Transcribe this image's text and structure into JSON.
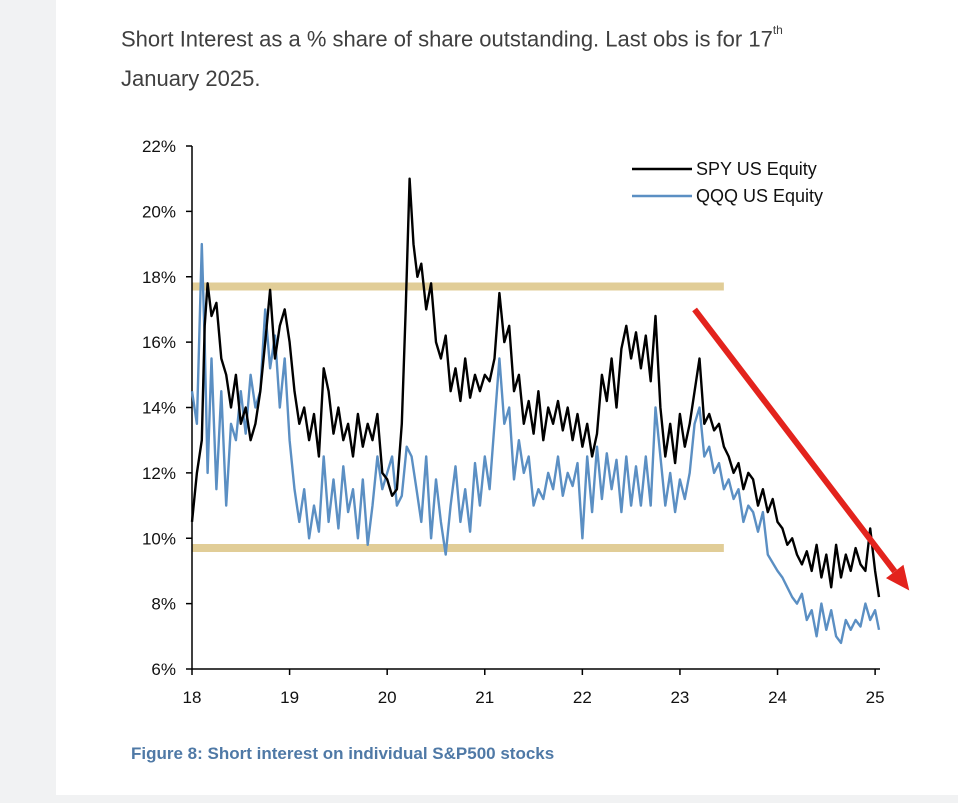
{
  "header": {
    "title_main": "Short Interest as a % share of share outstanding. Last obs is for 17",
    "title_sup": "th",
    "title_line2": "January 2025."
  },
  "caption": "Figure 8: Short interest on individual S&P500 stocks",
  "chart_data": {
    "type": "line",
    "title": "",
    "xlabel": "",
    "ylabel": "",
    "x_ticks": [
      "18",
      "19",
      "20",
      "21",
      "22",
      "23",
      "24",
      "25"
    ],
    "y_ticks": [
      "6%",
      "8%",
      "10%",
      "12%",
      "14%",
      "16%",
      "18%",
      "20%",
      "22%"
    ],
    "xlim": [
      2018.0,
      2025.05
    ],
    "ylim": [
      6,
      22
    ],
    "legend_position": "top-right",
    "series": [
      {
        "name": "SPY US Equity",
        "color": "#000000",
        "points": [
          [
            2018.0,
            10.5
          ],
          [
            2018.05,
            12.0
          ],
          [
            2018.1,
            13.0
          ],
          [
            2018.13,
            16.5
          ],
          [
            2018.16,
            17.8
          ],
          [
            2018.2,
            16.8
          ],
          [
            2018.25,
            17.2
          ],
          [
            2018.3,
            15.5
          ],
          [
            2018.35,
            15.0
          ],
          [
            2018.4,
            14.0
          ],
          [
            2018.45,
            15.0
          ],
          [
            2018.5,
            13.5
          ],
          [
            2018.55,
            14.0
          ],
          [
            2018.6,
            13.0
          ],
          [
            2018.65,
            13.5
          ],
          [
            2018.7,
            14.5
          ],
          [
            2018.75,
            16.0
          ],
          [
            2018.8,
            17.6
          ],
          [
            2018.85,
            15.5
          ],
          [
            2018.9,
            16.5
          ],
          [
            2018.95,
            17.0
          ],
          [
            2019.0,
            16.0
          ],
          [
            2019.05,
            14.5
          ],
          [
            2019.1,
            13.5
          ],
          [
            2019.15,
            14.0
          ],
          [
            2019.2,
            13.0
          ],
          [
            2019.25,
            13.8
          ],
          [
            2019.3,
            12.5
          ],
          [
            2019.35,
            15.2
          ],
          [
            2019.4,
            14.5
          ],
          [
            2019.45,
            13.2
          ],
          [
            2019.5,
            14.0
          ],
          [
            2019.55,
            13.0
          ],
          [
            2019.6,
            13.5
          ],
          [
            2019.65,
            12.5
          ],
          [
            2019.7,
            13.8
          ],
          [
            2019.75,
            12.8
          ],
          [
            2019.8,
            13.5
          ],
          [
            2019.85,
            13.0
          ],
          [
            2019.9,
            13.8
          ],
          [
            2019.95,
            12.0
          ],
          [
            2020.0,
            11.8
          ],
          [
            2020.05,
            11.3
          ],
          [
            2020.1,
            11.5
          ],
          [
            2020.15,
            13.5
          ],
          [
            2020.19,
            17.0
          ],
          [
            2020.23,
            21.0
          ],
          [
            2020.27,
            19.0
          ],
          [
            2020.31,
            18.0
          ],
          [
            2020.35,
            18.4
          ],
          [
            2020.4,
            17.0
          ],
          [
            2020.45,
            17.8
          ],
          [
            2020.5,
            16.0
          ],
          [
            2020.55,
            15.5
          ],
          [
            2020.6,
            16.2
          ],
          [
            2020.65,
            14.5
          ],
          [
            2020.7,
            15.2
          ],
          [
            2020.75,
            14.2
          ],
          [
            2020.8,
            15.5
          ],
          [
            2020.85,
            14.3
          ],
          [
            2020.9,
            15.0
          ],
          [
            2020.95,
            14.5
          ],
          [
            2021.0,
            15.0
          ],
          [
            2021.05,
            14.8
          ],
          [
            2021.1,
            15.5
          ],
          [
            2021.15,
            17.5
          ],
          [
            2021.2,
            16.0
          ],
          [
            2021.25,
            16.5
          ],
          [
            2021.3,
            14.5
          ],
          [
            2021.35,
            15.0
          ],
          [
            2021.4,
            13.5
          ],
          [
            2021.45,
            14.2
          ],
          [
            2021.5,
            13.2
          ],
          [
            2021.55,
            14.5
          ],
          [
            2021.6,
            13.0
          ],
          [
            2021.65,
            14.0
          ],
          [
            2021.7,
            13.5
          ],
          [
            2021.75,
            14.2
          ],
          [
            2021.8,
            13.3
          ],
          [
            2021.85,
            14.0
          ],
          [
            2021.9,
            13.0
          ],
          [
            2021.95,
            13.8
          ],
          [
            2022.0,
            12.8
          ],
          [
            2022.05,
            13.5
          ],
          [
            2022.1,
            12.5
          ],
          [
            2022.15,
            13.2
          ],
          [
            2022.2,
            15.0
          ],
          [
            2022.25,
            14.2
          ],
          [
            2022.3,
            15.5
          ],
          [
            2022.35,
            14.0
          ],
          [
            2022.4,
            15.8
          ],
          [
            2022.45,
            16.5
          ],
          [
            2022.5,
            15.5
          ],
          [
            2022.55,
            16.3
          ],
          [
            2022.6,
            15.2
          ],
          [
            2022.65,
            16.2
          ],
          [
            2022.7,
            14.8
          ],
          [
            2022.75,
            16.8
          ],
          [
            2022.8,
            14.0
          ],
          [
            2022.85,
            12.5
          ],
          [
            2022.9,
            13.5
          ],
          [
            2022.95,
            12.3
          ],
          [
            2023.0,
            13.8
          ],
          [
            2023.05,
            12.8
          ],
          [
            2023.1,
            13.5
          ],
          [
            2023.15,
            14.5
          ],
          [
            2023.2,
            15.5
          ],
          [
            2023.25,
            13.5
          ],
          [
            2023.3,
            13.8
          ],
          [
            2023.35,
            13.3
          ],
          [
            2023.4,
            13.5
          ],
          [
            2023.45,
            12.8
          ],
          [
            2023.5,
            12.5
          ],
          [
            2023.55,
            12.0
          ],
          [
            2023.6,
            12.3
          ],
          [
            2023.65,
            11.5
          ],
          [
            2023.7,
            12.0
          ],
          [
            2023.75,
            11.8
          ],
          [
            2023.8,
            11.0
          ],
          [
            2023.85,
            11.5
          ],
          [
            2023.9,
            10.8
          ],
          [
            2023.95,
            11.2
          ],
          [
            2024.0,
            10.5
          ],
          [
            2024.05,
            10.3
          ],
          [
            2024.1,
            9.8
          ],
          [
            2024.15,
            10.0
          ],
          [
            2024.2,
            9.5
          ],
          [
            2024.25,
            9.2
          ],
          [
            2024.3,
            9.6
          ],
          [
            2024.35,
            9.0
          ],
          [
            2024.4,
            9.8
          ],
          [
            2024.45,
            8.8
          ],
          [
            2024.5,
            9.5
          ],
          [
            2024.55,
            8.5
          ],
          [
            2024.6,
            9.8
          ],
          [
            2024.65,
            8.8
          ],
          [
            2024.7,
            9.5
          ],
          [
            2024.75,
            9.0
          ],
          [
            2024.8,
            9.7
          ],
          [
            2024.85,
            9.2
          ],
          [
            2024.9,
            9.0
          ],
          [
            2024.95,
            10.3
          ],
          [
            2025.0,
            9.0
          ],
          [
            2025.04,
            8.2
          ]
        ]
      },
      {
        "name": "QQQ US Equity",
        "color": "#5b8fc3",
        "points": [
          [
            2018.0,
            14.5
          ],
          [
            2018.05,
            13.5
          ],
          [
            2018.1,
            19.0
          ],
          [
            2018.13,
            16.0
          ],
          [
            2018.16,
            12.0
          ],
          [
            2018.2,
            15.5
          ],
          [
            2018.25,
            11.5
          ],
          [
            2018.3,
            14.5
          ],
          [
            2018.35,
            11.0
          ],
          [
            2018.4,
            13.5
          ],
          [
            2018.45,
            13.0
          ],
          [
            2018.5,
            14.5
          ],
          [
            2018.55,
            13.2
          ],
          [
            2018.6,
            15.0
          ],
          [
            2018.65,
            14.0
          ],
          [
            2018.7,
            14.5
          ],
          [
            2018.75,
            17.0
          ],
          [
            2018.8,
            15.2
          ],
          [
            2018.85,
            16.2
          ],
          [
            2018.9,
            14.0
          ],
          [
            2018.95,
            15.5
          ],
          [
            2019.0,
            13.0
          ],
          [
            2019.05,
            11.5
          ],
          [
            2019.1,
            10.5
          ],
          [
            2019.15,
            11.5
          ],
          [
            2019.2,
            10.0
          ],
          [
            2019.25,
            11.0
          ],
          [
            2019.3,
            10.2
          ],
          [
            2019.35,
            12.5
          ],
          [
            2019.4,
            10.5
          ],
          [
            2019.45,
            11.8
          ],
          [
            2019.5,
            10.3
          ],
          [
            2019.55,
            12.2
          ],
          [
            2019.6,
            10.8
          ],
          [
            2019.65,
            11.5
          ],
          [
            2019.7,
            10.0
          ],
          [
            2019.75,
            11.8
          ],
          [
            2019.8,
            9.8
          ],
          [
            2019.85,
            11.0
          ],
          [
            2019.9,
            12.5
          ],
          [
            2019.95,
            11.5
          ],
          [
            2020.0,
            12.0
          ],
          [
            2020.05,
            12.5
          ],
          [
            2020.1,
            11.0
          ],
          [
            2020.15,
            11.3
          ],
          [
            2020.2,
            12.8
          ],
          [
            2020.25,
            12.5
          ],
          [
            2020.3,
            11.5
          ],
          [
            2020.35,
            10.5
          ],
          [
            2020.4,
            12.5
          ],
          [
            2020.45,
            10.0
          ],
          [
            2020.5,
            11.8
          ],
          [
            2020.55,
            10.5
          ],
          [
            2020.6,
            9.5
          ],
          [
            2020.65,
            11.0
          ],
          [
            2020.7,
            12.2
          ],
          [
            2020.75,
            10.5
          ],
          [
            2020.8,
            11.5
          ],
          [
            2020.85,
            10.2
          ],
          [
            2020.9,
            12.3
          ],
          [
            2020.95,
            11.0
          ],
          [
            2021.0,
            12.5
          ],
          [
            2021.05,
            11.5
          ],
          [
            2021.1,
            13.5
          ],
          [
            2021.15,
            15.5
          ],
          [
            2021.2,
            13.5
          ],
          [
            2021.25,
            14.0
          ],
          [
            2021.3,
            11.8
          ],
          [
            2021.35,
            13.0
          ],
          [
            2021.4,
            12.0
          ],
          [
            2021.45,
            12.5
          ],
          [
            2021.5,
            11.0
          ],
          [
            2021.55,
            11.5
          ],
          [
            2021.6,
            11.2
          ],
          [
            2021.65,
            12.0
          ],
          [
            2021.7,
            11.5
          ],
          [
            2021.75,
            12.5
          ],
          [
            2021.8,
            11.3
          ],
          [
            2021.85,
            12.0
          ],
          [
            2021.9,
            11.6
          ],
          [
            2021.95,
            12.3
          ],
          [
            2022.0,
            10.0
          ],
          [
            2022.05,
            12.5
          ],
          [
            2022.1,
            10.8
          ],
          [
            2022.15,
            12.8
          ],
          [
            2022.2,
            11.2
          ],
          [
            2022.25,
            12.6
          ],
          [
            2022.3,
            11.5
          ],
          [
            2022.35,
            12.4
          ],
          [
            2022.4,
            10.8
          ],
          [
            2022.45,
            12.5
          ],
          [
            2022.5,
            11.0
          ],
          [
            2022.55,
            12.2
          ],
          [
            2022.6,
            11.0
          ],
          [
            2022.65,
            12.5
          ],
          [
            2022.7,
            11.0
          ],
          [
            2022.75,
            14.0
          ],
          [
            2022.8,
            12.5
          ],
          [
            2022.85,
            11.0
          ],
          [
            2022.9,
            12.0
          ],
          [
            2022.95,
            10.8
          ],
          [
            2023.0,
            11.8
          ],
          [
            2023.05,
            11.2
          ],
          [
            2023.1,
            12.0
          ],
          [
            2023.15,
            13.5
          ],
          [
            2023.2,
            14.0
          ],
          [
            2023.25,
            12.5
          ],
          [
            2023.3,
            12.8
          ],
          [
            2023.35,
            12.0
          ],
          [
            2023.4,
            12.3
          ],
          [
            2023.45,
            11.5
          ],
          [
            2023.5,
            11.8
          ],
          [
            2023.55,
            11.2
          ],
          [
            2023.6,
            11.5
          ],
          [
            2023.65,
            10.5
          ],
          [
            2023.7,
            11.0
          ],
          [
            2023.75,
            10.8
          ],
          [
            2023.8,
            10.2
          ],
          [
            2023.85,
            10.8
          ],
          [
            2023.9,
            9.5
          ],
          [
            2024.0,
            9.0
          ],
          [
            2024.05,
            8.8
          ],
          [
            2024.1,
            8.5
          ],
          [
            2024.15,
            8.2
          ],
          [
            2024.2,
            8.0
          ],
          [
            2024.25,
            8.3
          ],
          [
            2024.3,
            7.5
          ],
          [
            2024.35,
            7.8
          ],
          [
            2024.4,
            7.0
          ],
          [
            2024.45,
            8.0
          ],
          [
            2024.5,
            7.2
          ],
          [
            2024.55,
            7.8
          ],
          [
            2024.6,
            7.0
          ],
          [
            2024.65,
            6.8
          ],
          [
            2024.7,
            7.5
          ],
          [
            2024.75,
            7.2
          ],
          [
            2024.8,
            7.5
          ],
          [
            2024.85,
            7.3
          ],
          [
            2024.9,
            8.0
          ],
          [
            2024.95,
            7.5
          ],
          [
            2025.0,
            7.8
          ],
          [
            2025.04,
            7.2
          ]
        ]
      }
    ],
    "reference_bands": [
      {
        "y": 17.7,
        "x_end": 2023.45,
        "color": "#e1cd97"
      },
      {
        "y": 9.7,
        "x_end": 2023.45,
        "color": "#e1cd97"
      }
    ],
    "trend_arrow": {
      "from": [
        2023.15,
        17.0
      ],
      "to": [
        2025.35,
        8.4
      ],
      "color": "#e3231d"
    }
  }
}
